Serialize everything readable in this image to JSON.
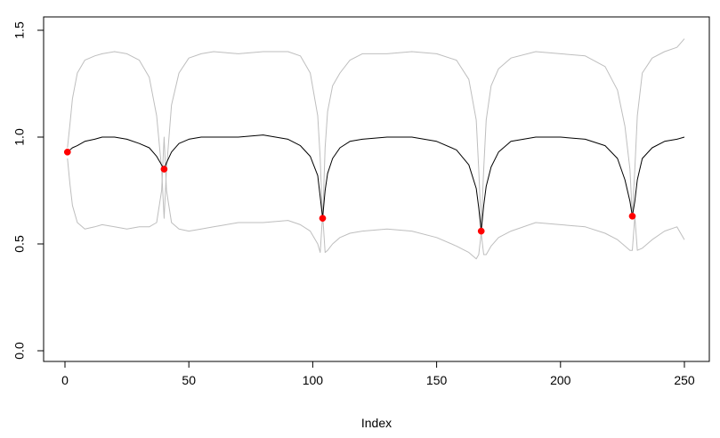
{
  "chart_data": {
    "type": "line",
    "title": "",
    "xlabel": "Index",
    "ylabel": "",
    "xlim": [
      0,
      250
    ],
    "ylim": [
      0,
      1.5
    ],
    "x_ticks": [
      0,
      50,
      100,
      150,
      200,
      250
    ],
    "y_ticks": [
      0.0,
      0.5,
      1.0,
      1.5
    ],
    "x_tick_labels": [
      "0",
      "50",
      "100",
      "150",
      "200",
      "250"
    ],
    "y_tick_labels": [
      "0.0",
      "0.5",
      "1.0",
      "1.5"
    ],
    "grid": false,
    "legend": "none",
    "series": [
      {
        "role": "upper-envelope",
        "color": "#bebebe",
        "x": [
          1,
          2,
          3,
          5,
          8,
          12,
          15,
          20,
          25,
          30,
          34,
          37,
          39,
          40,
          41,
          43,
          46,
          50,
          55,
          60,
          70,
          80,
          90,
          95,
          99,
          102,
          103,
          104,
          105,
          106,
          108,
          111,
          115,
          120,
          130,
          140,
          150,
          158,
          163,
          166,
          167,
          168,
          169,
          170,
          172,
          175,
          180,
          190,
          200,
          210,
          218,
          223,
          226,
          228,
          229,
          230,
          231,
          233,
          237,
          242,
          247,
          250
        ],
        "y": [
          0.95,
          1.06,
          1.18,
          1.3,
          1.36,
          1.38,
          1.39,
          1.4,
          1.39,
          1.36,
          1.28,
          1.1,
          0.85,
          0.62,
          0.85,
          1.15,
          1.3,
          1.37,
          1.39,
          1.4,
          1.39,
          1.4,
          1.4,
          1.38,
          1.3,
          1.1,
          0.9,
          0.6,
          0.95,
          1.12,
          1.24,
          1.3,
          1.36,
          1.39,
          1.39,
          1.4,
          1.39,
          1.36,
          1.27,
          1.08,
          0.85,
          0.58,
          0.85,
          1.08,
          1.24,
          1.32,
          1.37,
          1.4,
          1.39,
          1.38,
          1.33,
          1.22,
          1.05,
          0.85,
          0.63,
          0.85,
          1.1,
          1.3,
          1.37,
          1.4,
          1.42,
          1.46
        ]
      },
      {
        "role": "lower-envelope",
        "color": "#bebebe",
        "x": [
          1,
          2,
          3,
          5,
          8,
          12,
          15,
          20,
          25,
          30,
          34,
          37,
          39,
          40,
          41,
          43,
          46,
          50,
          55,
          60,
          70,
          80,
          90,
          95,
          99,
          102,
          103,
          104,
          105,
          106,
          108,
          111,
          115,
          120,
          130,
          140,
          150,
          158,
          163,
          166,
          167,
          168,
          169,
          170,
          172,
          175,
          180,
          190,
          200,
          210,
          218,
          223,
          226,
          228,
          229,
          230,
          231,
          233,
          237,
          242,
          247,
          250
        ],
        "y": [
          0.9,
          0.78,
          0.68,
          0.6,
          0.57,
          0.58,
          0.59,
          0.58,
          0.57,
          0.58,
          0.58,
          0.6,
          0.75,
          1.0,
          0.75,
          0.6,
          0.57,
          0.56,
          0.57,
          0.58,
          0.6,
          0.6,
          0.61,
          0.59,
          0.56,
          0.5,
          0.46,
          0.64,
          0.46,
          0.47,
          0.5,
          0.53,
          0.55,
          0.56,
          0.57,
          0.56,
          0.53,
          0.49,
          0.46,
          0.43,
          0.45,
          0.55,
          0.45,
          0.45,
          0.49,
          0.53,
          0.56,
          0.6,
          0.59,
          0.58,
          0.55,
          0.52,
          0.49,
          0.47,
          0.47,
          0.63,
          0.47,
          0.48,
          0.52,
          0.56,
          0.58,
          0.52
        ]
      },
      {
        "role": "mean",
        "color": "#000000",
        "x": [
          1,
          2,
          3,
          5,
          8,
          12,
          15,
          20,
          25,
          30,
          34,
          37,
          39,
          40,
          41,
          43,
          46,
          50,
          55,
          60,
          70,
          80,
          90,
          95,
          99,
          102,
          103,
          104,
          105,
          106,
          108,
          111,
          115,
          120,
          130,
          140,
          150,
          158,
          163,
          166,
          167,
          168,
          169,
          170,
          172,
          175,
          180,
          190,
          200,
          210,
          218,
          223,
          226,
          228,
          229,
          230,
          231,
          233,
          237,
          242,
          247,
          250
        ],
        "y": [
          0.93,
          0.94,
          0.95,
          0.96,
          0.98,
          0.99,
          1.0,
          1.0,
          0.99,
          0.97,
          0.95,
          0.91,
          0.87,
          0.85,
          0.88,
          0.93,
          0.97,
          0.99,
          1.0,
          1.0,
          1.0,
          1.01,
          0.99,
          0.96,
          0.91,
          0.82,
          0.72,
          0.62,
          0.75,
          0.83,
          0.9,
          0.95,
          0.98,
          0.99,
          1.0,
          1.0,
          0.98,
          0.94,
          0.87,
          0.76,
          0.67,
          0.56,
          0.68,
          0.77,
          0.86,
          0.93,
          0.98,
          1.0,
          1.0,
          0.99,
          0.96,
          0.9,
          0.8,
          0.7,
          0.63,
          0.7,
          0.8,
          0.9,
          0.95,
          0.98,
          0.99,
          1.0
        ]
      }
    ],
    "points": {
      "color": "#ff0000",
      "x": [
        1,
        40,
        104,
        168,
        229
      ],
      "y": [
        0.93,
        0.85,
        0.62,
        0.56,
        0.63
      ]
    }
  }
}
